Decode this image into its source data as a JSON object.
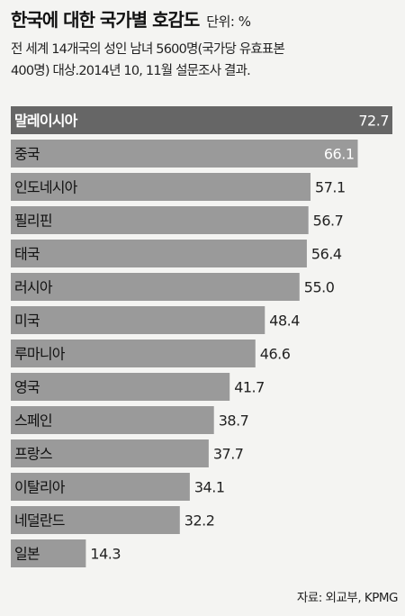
{
  "title": "한국에 대한 국가별 호감도",
  "unit_label": "단위: %",
  "subtitle": "전 세계 14개국의 성인 남녀 5600명(국가당 유효표본\n400명) 대상.2014년 10, 11월 설문조사 결과.",
  "source": "자료: 외교부, KPMG",
  "colors": {
    "background": "#f4f4f2",
    "bar": "#9a9a9a",
    "bar_highlight": "#666666",
    "label_inside": "#ffffff",
    "label_outside": "#222222"
  },
  "chart_data": {
    "type": "bar",
    "orientation": "horizontal",
    "categories": [
      "말레이시아",
      "중국",
      "인도네시아",
      "필리핀",
      "태국",
      "러시아",
      "미국",
      "루마니아",
      "영국",
      "스페인",
      "프랑스",
      "이탈리아",
      "네덜란드",
      "일본"
    ],
    "values": [
      72.7,
      66.1,
      57.1,
      56.7,
      56.4,
      55.0,
      48.4,
      46.6,
      41.7,
      38.7,
      37.7,
      34.1,
      32.2,
      14.3
    ],
    "value_labels": [
      "72.7",
      "66.1",
      "57.1",
      "56.7",
      "56.4",
      "55.0",
      "48.4",
      "46.6",
      "41.7",
      "38.7",
      "37.7",
      "34.1",
      "32.2",
      "14.3"
    ],
    "highlight_index": 0,
    "labels_inside_count": 2,
    "title": "한국에 대한 국가별 호감도",
    "unit": "%",
    "xlim": [
      0,
      72.7
    ],
    "grid": false,
    "legend": "none"
  }
}
